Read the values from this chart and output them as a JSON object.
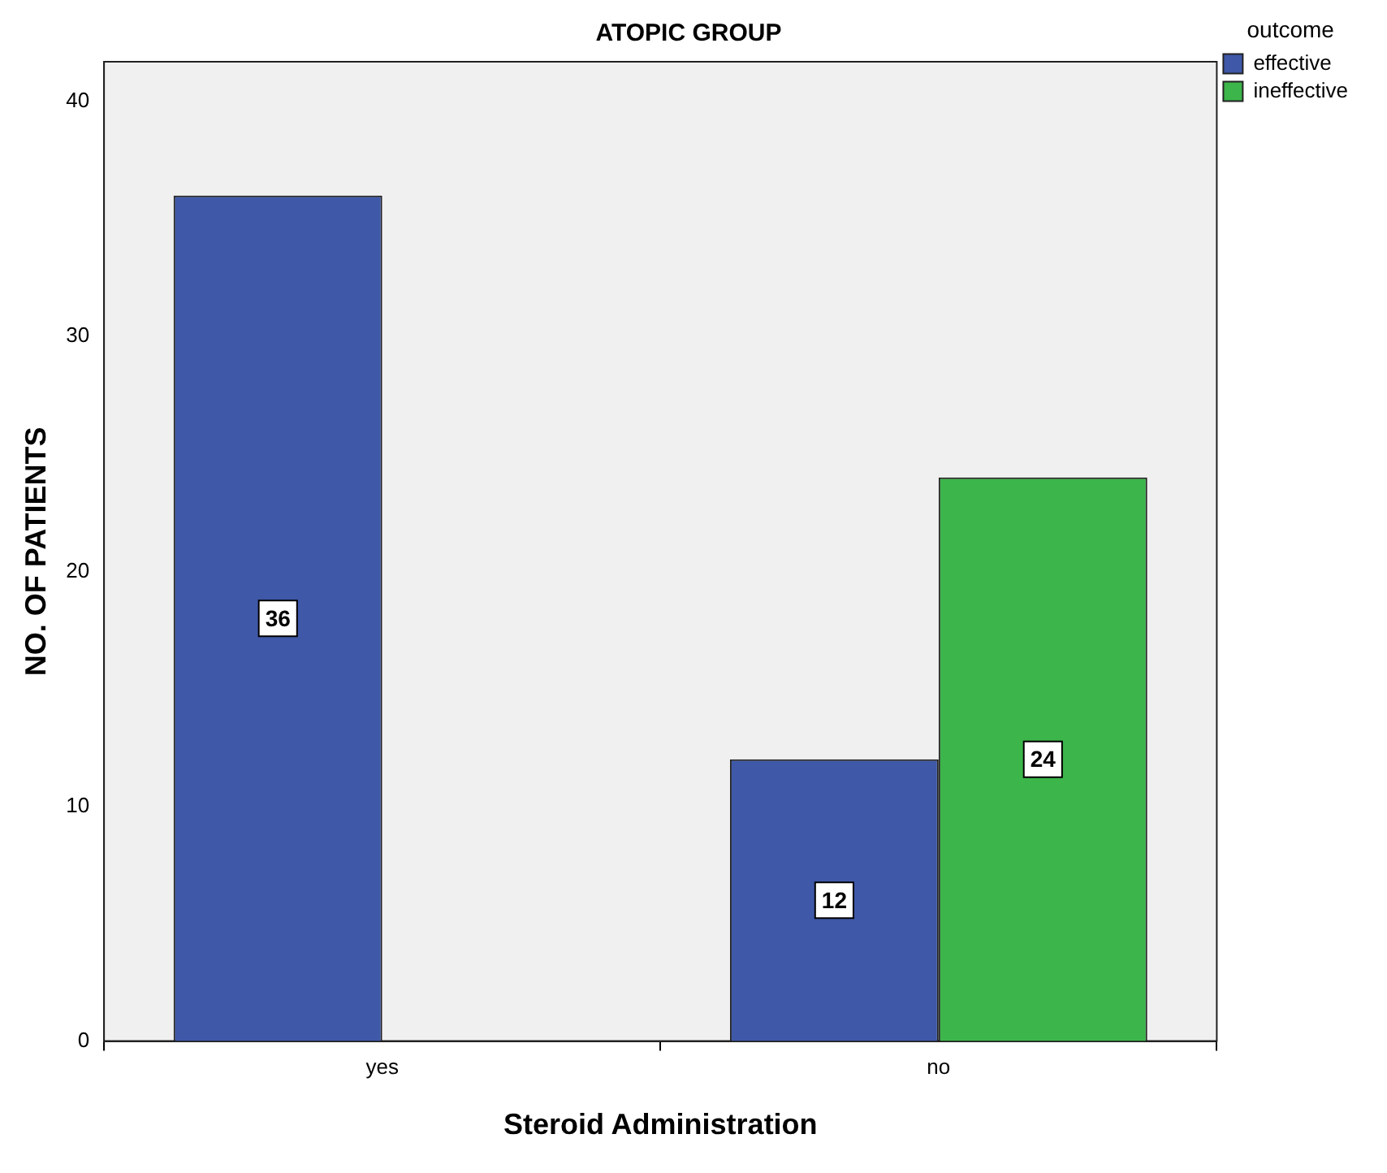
{
  "chart_data": {
    "type": "bar",
    "title": "ATOPIC GROUP",
    "xlabel": "Steroid Administration",
    "ylabel": "NO. OF PATIENTS",
    "legend_title": "outcome",
    "categories": [
      "yes",
      "no"
    ],
    "series": [
      {
        "name": "effective",
        "color": "#3f58a8",
        "values": [
          36,
          12
        ]
      },
      {
        "name": "ineffective",
        "color": "#3cb54a",
        "values": [
          null,
          24
        ]
      }
    ],
    "ylim": [
      0,
      41.7
    ],
    "yticks": [
      0,
      10,
      20,
      30,
      40
    ],
    "grid": false,
    "legend": "top right",
    "data_labels": true
  }
}
